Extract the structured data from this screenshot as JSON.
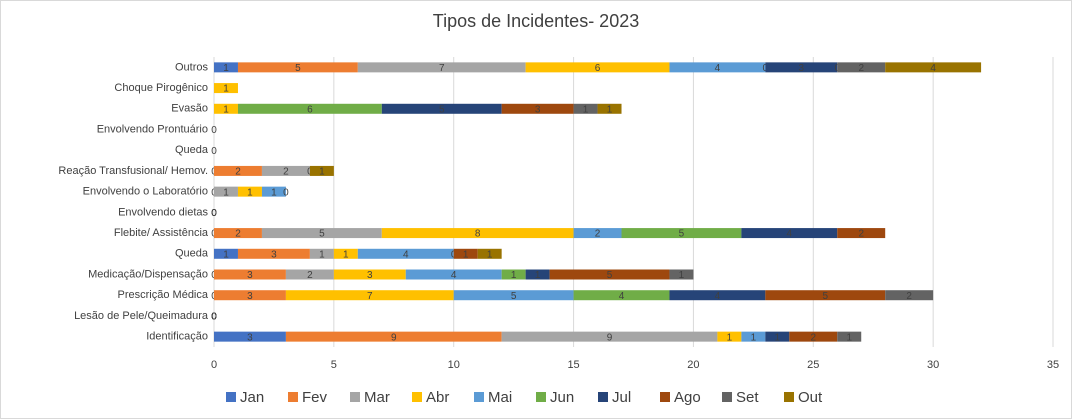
{
  "chart_data": {
    "type": "stacked_barh",
    "title": "Tipos de Incidentes- 2023",
    "categories": [
      "Outros",
      "Choque Pirogênico",
      "Evasão",
      "Envolvendo Prontuário",
      "Queda",
      "Reação Transfusional/ Hemov.",
      "Envolvendo o Laboratório",
      "Envolvendo dietas",
      "Flebite/ Assistência",
      "Queda",
      "Medicação/Dispensação",
      "Prescrição Médica",
      "Lesão de Pele/Queimadura",
      "Identificação"
    ],
    "series": [
      {
        "name": "Jan",
        "color": "#4472c4",
        "values": [
          1,
          null,
          null,
          0,
          0,
          0,
          0,
          null,
          0,
          1,
          0,
          0,
          0,
          3
        ]
      },
      {
        "name": "Fev",
        "color": "#ed7d31",
        "values": [
          5,
          null,
          null,
          null,
          null,
          2,
          null,
          null,
          2,
          3,
          3,
          3,
          0,
          9
        ]
      },
      {
        "name": "Mar",
        "color": "#a5a5a5",
        "values": [
          7,
          null,
          null,
          null,
          null,
          2,
          1,
          null,
          5,
          1,
          2,
          null,
          0,
          9
        ]
      },
      {
        "name": "Abr",
        "color": "#ffc000",
        "values": [
          6,
          1,
          1,
          null,
          null,
          null,
          1,
          null,
          8,
          1,
          3,
          7,
          0,
          1
        ]
      },
      {
        "name": "Mai",
        "color": "#5b9bd5",
        "values": [
          4,
          null,
          null,
          null,
          null,
          null,
          1,
          null,
          2,
          4,
          4,
          5,
          0,
          1
        ]
      },
      {
        "name": "Jun",
        "color": "#70ad47",
        "values": [
          0,
          null,
          6,
          null,
          null,
          null,
          null,
          null,
          5,
          0,
          1,
          4,
          null,
          null
        ]
      },
      {
        "name": "Jul",
        "color": "#264478",
        "values": [
          3,
          null,
          5,
          null,
          null,
          null,
          0,
          0,
          4,
          null,
          1,
          4,
          null,
          1
        ]
      },
      {
        "name": "Ago",
        "color": "#9e480e",
        "values": [
          0,
          null,
          3,
          null,
          null,
          null,
          null,
          0,
          2,
          1,
          5,
          5,
          null,
          2
        ]
      },
      {
        "name": "Set",
        "color": "#636363",
        "values": [
          2,
          null,
          1,
          null,
          null,
          0,
          null,
          0,
          null,
          null,
          1,
          2,
          null,
          1
        ]
      },
      {
        "name": "Out",
        "color": "#997300",
        "values": [
          4,
          null,
          1,
          null,
          null,
          1,
          null,
          null,
          null,
          1,
          null,
          null,
          null,
          null
        ]
      }
    ],
    "xlim": [
      0,
      35
    ],
    "xticks": [
      0,
      5,
      10,
      15,
      20,
      25,
      30,
      35
    ],
    "grid": true,
    "legend": "bottom"
  }
}
